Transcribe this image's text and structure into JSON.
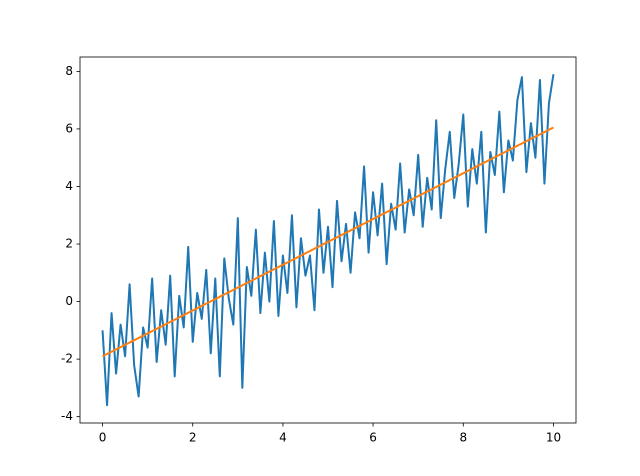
{
  "chart_data": {
    "type": "line",
    "xlim": [
      -0.5,
      10.5
    ],
    "ylim": [
      -4.22,
      8.5
    ],
    "xticks": [
      0,
      2,
      4,
      6,
      8,
      10
    ],
    "yticks": [
      -4,
      -2,
      0,
      2,
      4,
      6,
      8
    ],
    "series": [
      {
        "color": "#1f77b4",
        "x": [
          0,
          0.1,
          0.2,
          0.3,
          0.4,
          0.5,
          0.6,
          0.7,
          0.8,
          0.9,
          1,
          1.1,
          1.2,
          1.3,
          1.4,
          1.5,
          1.6,
          1.7,
          1.8,
          1.9,
          2,
          2.1,
          2.2,
          2.3,
          2.4,
          2.5,
          2.6,
          2.7,
          2.8,
          2.9,
          3,
          3.1,
          3.2,
          3.3,
          3.4,
          3.5,
          3.6,
          3.7,
          3.8,
          3.9,
          4,
          4.1,
          4.2,
          4.3,
          4.4,
          4.5,
          4.6,
          4.7,
          4.8,
          4.9,
          5,
          5.1,
          5.2,
          5.3,
          5.4,
          5.5,
          5.6,
          5.7,
          5.8,
          5.9,
          6,
          6.1,
          6.2,
          6.3,
          6.4,
          6.5,
          6.6,
          6.7,
          6.8,
          6.9,
          7,
          7.1,
          7.2,
          7.3,
          7.4,
          7.5,
          7.6,
          7.7,
          7.8,
          7.9,
          8,
          8.1,
          8.2,
          8.3,
          8.4,
          8.5,
          8.6,
          8.7,
          8.8,
          8.9,
          9,
          9.1,
          9.2,
          9.3,
          9.4,
          9.5,
          9.6,
          9.7,
          9.8,
          9.9,
          10
        ],
        "values": [
          -1.0,
          -3.6,
          -0.4,
          -2.5,
          -0.8,
          -1.9,
          0.6,
          -2.2,
          -3.3,
          -0.9,
          -1.6,
          0.8,
          -2.1,
          -0.3,
          -1.5,
          0.9,
          -2.6,
          0.2,
          -0.9,
          1.9,
          -1.4,
          0.3,
          -0.6,
          1.1,
          -1.8,
          0.8,
          -2.6,
          1.5,
          0.1,
          -0.8,
          2.9,
          -3.0,
          1.2,
          0.2,
          2.5,
          -0.4,
          1.7,
          0.0,
          2.8,
          -0.5,
          1.6,
          0.3,
          3.0,
          -0.2,
          2.2,
          0.9,
          1.6,
          -0.3,
          3.2,
          1.0,
          2.6,
          0.5,
          3.5,
          1.4,
          2.7,
          1.0,
          3.1,
          2.2,
          4.7,
          1.7,
          3.8,
          2.3,
          4.1,
          1.3,
          3.4,
          2.5,
          4.8,
          2.4,
          3.9,
          3.0,
          5.1,
          2.6,
          4.3,
          3.2,
          6.3,
          2.9,
          4.6,
          5.9,
          3.6,
          4.8,
          6.5,
          3.3,
          5.3,
          4.1,
          5.9,
          2.4,
          5.2,
          4.4,
          6.6,
          3.8,
          5.6,
          4.9,
          7.0,
          7.8,
          4.5,
          6.2,
          5.0,
          7.7,
          4.1,
          6.9,
          7.9
        ]
      },
      {
        "color": "#ff7f0e",
        "x": [
          0,
          10
        ],
        "values": [
          -1.9,
          6.05
        ]
      }
    ]
  }
}
